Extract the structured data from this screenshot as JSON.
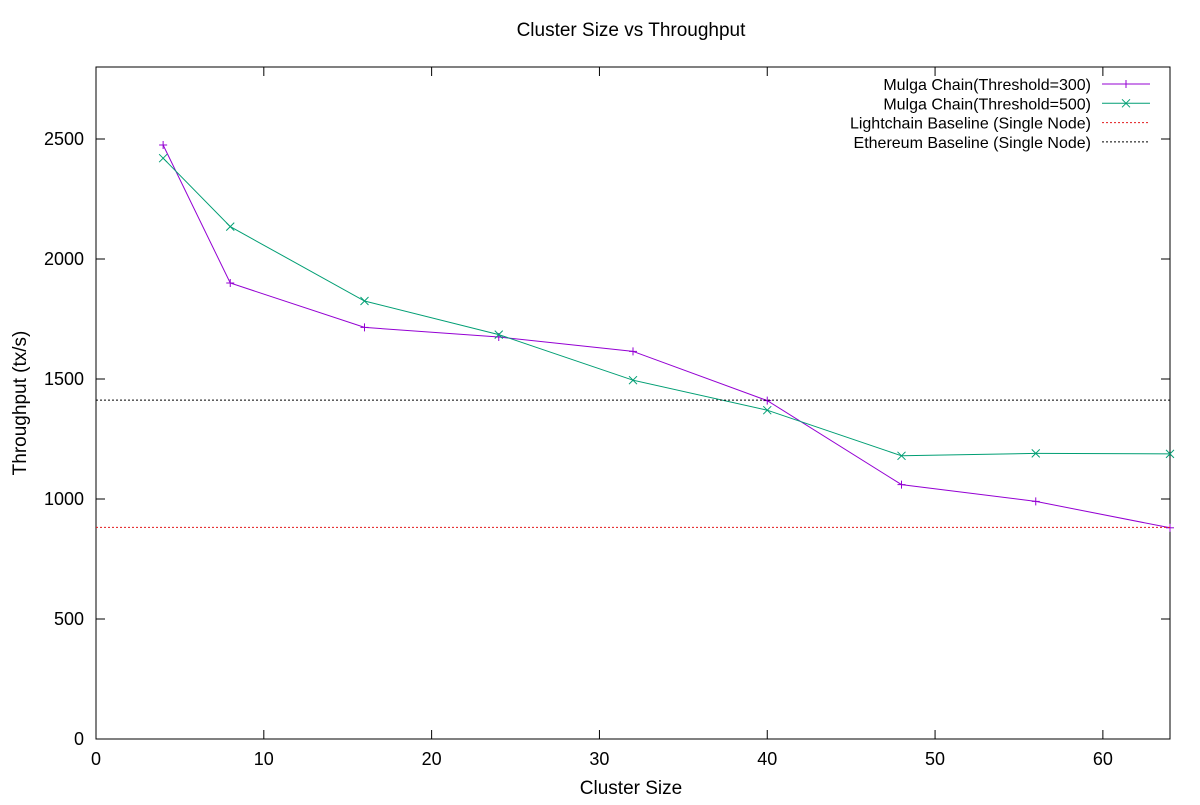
{
  "chart_data": {
    "type": "line",
    "title": "Cluster Size vs Throughput",
    "xlabel": "Cluster Size",
    "ylabel": "Throughput (tx/s)",
    "xlim": [
      0,
      64
    ],
    "ylim": [
      0,
      2800
    ],
    "x_ticks": [
      0,
      10,
      20,
      30,
      40,
      50,
      60
    ],
    "y_ticks": [
      0,
      500,
      1000,
      1500,
      2000,
      2500
    ],
    "grid": false,
    "legend_position": "top-right",
    "series": [
      {
        "name": "Mulga Chain(Threshold=300)",
        "color": "#9400d3",
        "marker": "plus",
        "line_style": "solid",
        "x": [
          4,
          8,
          16,
          24,
          32,
          40,
          48,
          56,
          64
        ],
        "values": [
          2475,
          1900,
          1715,
          1675,
          1615,
          1410,
          1060,
          990,
          880
        ]
      },
      {
        "name": "Mulga Chain(Threshold=500)",
        "color": "#009e73",
        "marker": "cross",
        "line_style": "solid",
        "x": [
          4,
          8,
          16,
          24,
          32,
          40,
          48,
          56,
          64
        ],
        "values": [
          2420,
          2135,
          1825,
          1685,
          1495,
          1370,
          1180,
          1190,
          1188
        ]
      },
      {
        "name": "Lightchain Baseline (Single Node)",
        "color": "#e41a1c",
        "marker": "none",
        "line_style": "dotted",
        "constant": 882
      },
      {
        "name": "Ethereum Baseline (Single Node)",
        "color": "#000000",
        "marker": "none",
        "line_style": "dotted",
        "constant": 1412
      }
    ]
  }
}
